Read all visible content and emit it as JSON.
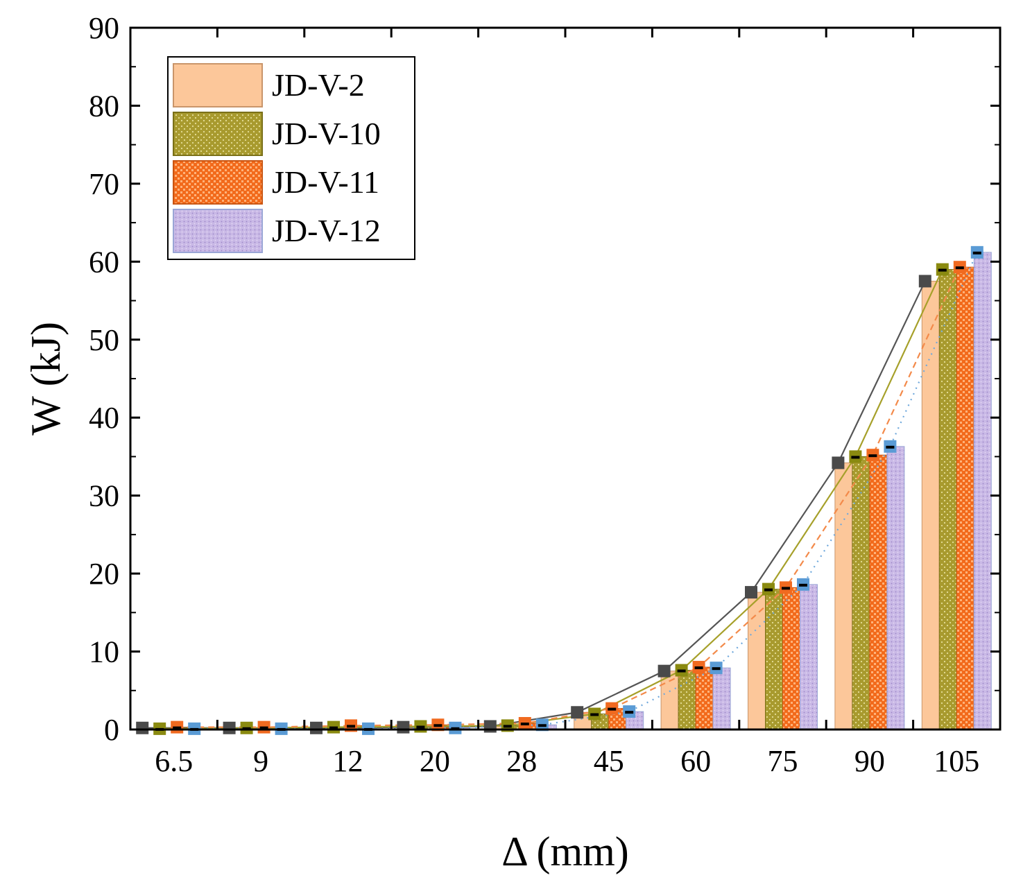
{
  "chart_data": {
    "type": "bar",
    "title": "",
    "xlabel": "Δ (mm)",
    "ylabel": "W (kJ)",
    "ylim": [
      0,
      90
    ],
    "yticks": [
      0,
      10,
      20,
      30,
      40,
      50,
      60,
      70,
      80,
      90
    ],
    "categories": [
      "6.5",
      "9",
      "12",
      "20",
      "28",
      "45",
      "60",
      "75",
      "90",
      "105"
    ],
    "legend_position": "top-left",
    "series": [
      {
        "name": "JD-V-2",
        "color": "#fcc79a",
        "marker_color": "#4a4a4a",
        "line_color": "#555555",
        "line_style": "solid",
        "values": [
          0.2,
          0.2,
          0.2,
          0.3,
          0.4,
          2.2,
          7.5,
          17.6,
          34.2,
          57.5
        ]
      },
      {
        "name": "JD-V-10",
        "color": "#a89a2e",
        "marker_color": "#8a8a10",
        "line_color": "#a6a02a",
        "line_style": "solid",
        "values": [
          0.1,
          0.2,
          0.3,
          0.4,
          0.5,
          2.0,
          7.6,
          18.0,
          35.0,
          59.0
        ]
      },
      {
        "name": "JD-V-11",
        "color": "#f06a20",
        "marker_color": "#f06a20",
        "line_color": "#f38a4a",
        "line_style": "dash",
        "values": [
          0.3,
          0.3,
          0.5,
          0.6,
          0.8,
          2.7,
          8.0,
          18.2,
          35.2,
          59.3
        ]
      },
      {
        "name": "JD-V-12",
        "color": "#c6b6e4",
        "marker_color": "#5a9bd5",
        "line_color": "#6fa8dc",
        "line_style": "dot",
        "values": [
          0.1,
          0.1,
          0.1,
          0.2,
          0.6,
          2.3,
          7.9,
          18.6,
          36.3,
          61.2
        ]
      }
    ]
  }
}
